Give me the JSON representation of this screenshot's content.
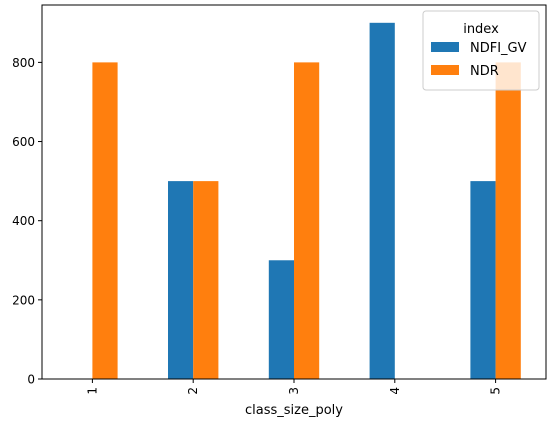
{
  "chart_data": {
    "type": "bar",
    "title": "",
    "xlabel": "class_size_poly",
    "ylabel": "",
    "categories": [
      "1",
      "2",
      "3",
      "4",
      "5"
    ],
    "series": [
      {
        "name": "NDFI_GV",
        "color": "#1f77b4",
        "values": [
          0,
          500,
          300,
          900,
          500
        ]
      },
      {
        "name": "NDR",
        "color": "#ff7f0e",
        "values": [
          800,
          500,
          800,
          0,
          800
        ]
      }
    ],
    "ylim": [
      0,
      945
    ],
    "yticks": [
      0,
      200,
      400,
      600,
      800
    ],
    "legend": {
      "title": "index",
      "placement": "top-right"
    },
    "grid": false,
    "x_tick_rotation": "vertical"
  }
}
